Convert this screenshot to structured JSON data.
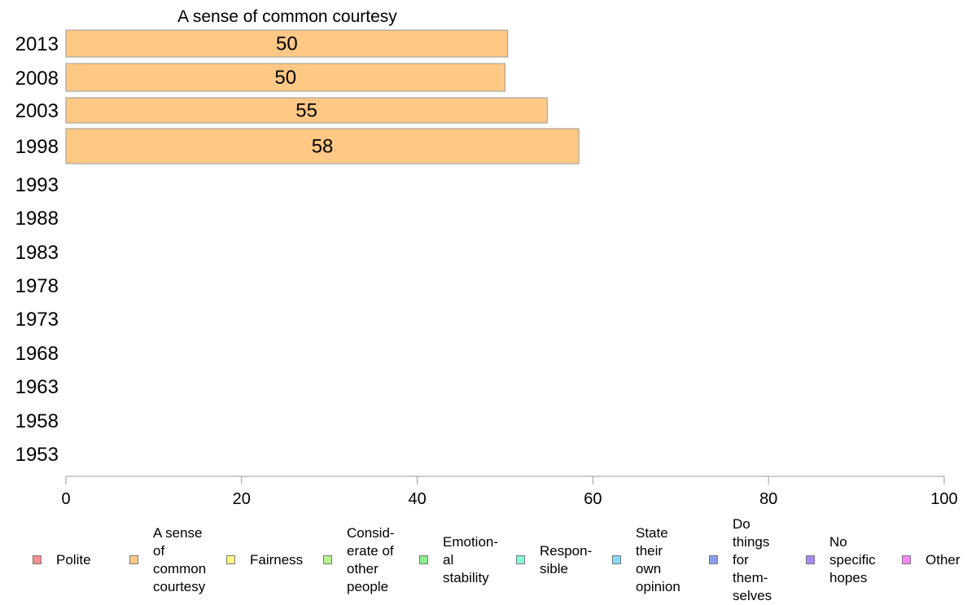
{
  "chart_data": {
    "type": "bar",
    "orientation": "horizontal",
    "title": "A sense of common courtesy",
    "categories": [
      "2013",
      "2008",
      "2003",
      "1998",
      "1993",
      "1988",
      "1983",
      "1978",
      "1973",
      "1968",
      "1963",
      "1958",
      "1953"
    ],
    "series": [
      {
        "name": "A sense of common courtesy",
        "values": [
          50.3,
          50.0,
          54.8,
          58.4,
          null,
          null,
          null,
          null,
          null,
          null,
          null,
          null,
          null
        ]
      }
    ],
    "data_labels": [
      "50",
      "50",
      "55",
      "58",
      "",
      "",
      "",
      "",
      "",
      "",
      "",
      "",
      ""
    ],
    "xlim": [
      0,
      100
    ],
    "xticks": [
      "0",
      "20",
      "40",
      "60",
      "80",
      "100"
    ],
    "grid": false,
    "legend_position": "bottom",
    "legend": [
      {
        "label": "Polite",
        "color": "#f28e8e"
      },
      {
        "label": "A sense\nof\ncommon\ncourtesy",
        "color": "#ffc985"
      },
      {
        "label": "Fairness",
        "color": "#fdfb8a"
      },
      {
        "label": "Consid-\nerate of\nother\npeople",
        "color": "#b9f58a"
      },
      {
        "label": "Emotion-\nal\nstability",
        "color": "#88f08c"
      },
      {
        "label": "Respon-\nsible",
        "color": "#8cf5d6"
      },
      {
        "label": "State\ntheir\nown\nopinion",
        "color": "#8bd8f7"
      },
      {
        "label": "Do\nthings\nfor\nthem-\nselves",
        "color": "#8c9cf5"
      },
      {
        "label": "No\nspecific\nhopes",
        "color": "#a98af2"
      },
      {
        "label": "Other",
        "color": "#f588f2"
      }
    ],
    "bar_color": "#ffc985"
  }
}
